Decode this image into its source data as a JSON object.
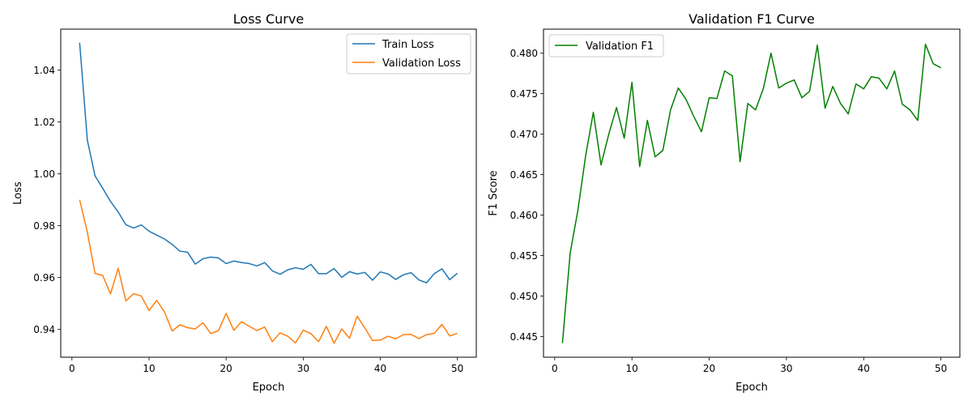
{
  "chart_data": [
    {
      "type": "line",
      "title": "Loss Curve",
      "xlabel": "Epoch",
      "ylabel": "Loss",
      "xlim": [
        -1.45,
        52.45
      ],
      "ylim": [
        0.9293,
        1.0558
      ],
      "xticks": [
        0,
        10,
        20,
        30,
        40,
        50
      ],
      "yticks": [
        0.94,
        0.96,
        0.98,
        1.0,
        1.02,
        1.04
      ],
      "ytick_decimals": 2,
      "grid": false,
      "legend": "upper right",
      "x": [
        1,
        2,
        3,
        4,
        5,
        6,
        7,
        8,
        9,
        10,
        11,
        12,
        13,
        14,
        15,
        16,
        17,
        18,
        19,
        20,
        21,
        22,
        23,
        24,
        25,
        26,
        27,
        28,
        29,
        30,
        31,
        32,
        33,
        34,
        35,
        36,
        37,
        38,
        39,
        40,
        41,
        42,
        43,
        44,
        45,
        46,
        47,
        48,
        49,
        50
      ],
      "series": [
        {
          "name": "Train Loss",
          "color": "#1f77b4",
          "values": [
            1.0506,
            1.013,
            0.9992,
            0.9944,
            0.9894,
            0.9853,
            0.9804,
            0.9791,
            0.9803,
            0.9779,
            0.9764,
            0.9749,
            0.9728,
            0.9702,
            0.9698,
            0.9652,
            0.9673,
            0.9679,
            0.9676,
            0.9654,
            0.9664,
            0.9658,
            0.9654,
            0.9645,
            0.9658,
            0.9626,
            0.9613,
            0.963,
            0.9638,
            0.9632,
            0.9651,
            0.9615,
            0.9615,
            0.9635,
            0.9601,
            0.9623,
            0.9614,
            0.962,
            0.959,
            0.9622,
            0.9614,
            0.9593,
            0.9611,
            0.9619,
            0.9591,
            0.958,
            0.9615,
            0.9634,
            0.9592,
            0.9617
          ]
        },
        {
          "name": "Validation Loss",
          "color": "#ff7f0e",
          "values": [
            0.99,
            0.9775,
            0.9616,
            0.9608,
            0.9537,
            0.9636,
            0.951,
            0.9538,
            0.9529,
            0.9473,
            0.9512,
            0.9468,
            0.9394,
            0.9418,
            0.9407,
            0.9402,
            0.9426,
            0.9384,
            0.9395,
            0.9462,
            0.9397,
            0.943,
            0.9412,
            0.9396,
            0.9409,
            0.9353,
            0.9387,
            0.9374,
            0.9348,
            0.9397,
            0.9384,
            0.9353,
            0.9412,
            0.9347,
            0.9402,
            0.9366,
            0.9451,
            0.9405,
            0.9357,
            0.9359,
            0.9374,
            0.9364,
            0.938,
            0.9381,
            0.9365,
            0.938,
            0.9385,
            0.942,
            0.9375,
            0.9385
          ]
        }
      ]
    },
    {
      "type": "line",
      "title": "Validation F1 Curve",
      "xlabel": "Epoch",
      "ylabel": "F1 Score",
      "xlim": [
        -1.45,
        52.45
      ],
      "ylim": [
        0.44245,
        0.48297
      ],
      "xticks": [
        0,
        10,
        20,
        30,
        40,
        50
      ],
      "yticks": [
        0.445,
        0.45,
        0.455,
        0.46,
        0.465,
        0.47,
        0.475,
        0.48
      ],
      "ytick_decimals": 3,
      "grid": false,
      "legend": "upper left",
      "x": [
        1,
        2,
        3,
        4,
        5,
        6,
        7,
        8,
        9,
        10,
        11,
        12,
        13,
        14,
        15,
        16,
        17,
        18,
        19,
        20,
        21,
        22,
        23,
        24,
        25,
        26,
        27,
        28,
        29,
        30,
        31,
        32,
        33,
        34,
        35,
        36,
        37,
        38,
        39,
        40,
        41,
        42,
        43,
        44,
        45,
        46,
        47,
        48,
        49,
        50
      ],
      "series": [
        {
          "name": "Validation F1",
          "color": "#008000",
          "values": [
            0.4442,
            0.4553,
            0.4606,
            0.4673,
            0.4727,
            0.4662,
            0.47,
            0.4733,
            0.4695,
            0.4764,
            0.466,
            0.4717,
            0.4672,
            0.468,
            0.473,
            0.4757,
            0.4743,
            0.4722,
            0.4703,
            0.4745,
            0.4744,
            0.4778,
            0.4772,
            0.4666,
            0.4738,
            0.473,
            0.4756,
            0.48,
            0.4757,
            0.4763,
            0.4767,
            0.4745,
            0.4753,
            0.481,
            0.4732,
            0.4759,
            0.4738,
            0.4725,
            0.4762,
            0.4756,
            0.4771,
            0.4769,
            0.4756,
            0.4778,
            0.4737,
            0.473,
            0.4717,
            0.4811,
            0.4787,
            0.4782
          ]
        }
      ]
    }
  ]
}
